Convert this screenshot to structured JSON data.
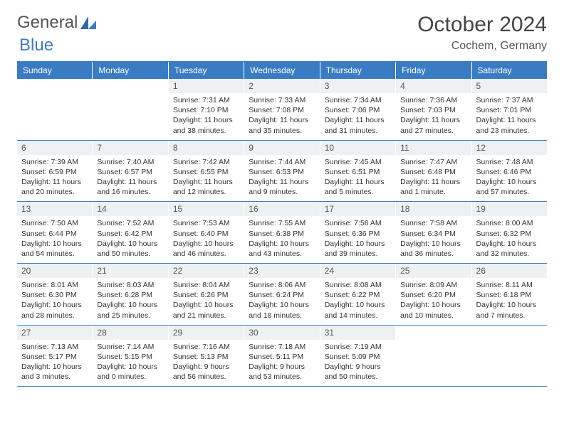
{
  "brand": {
    "word1": "General",
    "word2": "Blue"
  },
  "title": "October 2024",
  "location": "Cochem, Germany",
  "colors": {
    "brand_blue": "#3a7cc4",
    "text_dark": "#444444",
    "text_mid": "#555555",
    "daynum_bg": "#eef1f3",
    "page_bg": "#ffffff"
  },
  "typography": {
    "title_fontsize_pt": 22,
    "location_fontsize_pt": 12,
    "dow_fontsize_pt": 9,
    "cell_fontsize_pt": 8
  },
  "dow": [
    "Sunday",
    "Monday",
    "Tuesday",
    "Wednesday",
    "Thursday",
    "Friday",
    "Saturday"
  ],
  "weeks": [
    [
      {
        "n": "",
        "sr": "",
        "ss": "",
        "dl": "",
        "empty": true
      },
      {
        "n": "",
        "sr": "",
        "ss": "",
        "dl": "",
        "empty": true
      },
      {
        "n": "1",
        "sr": "Sunrise: 7:31 AM",
        "ss": "Sunset: 7:10 PM",
        "dl": "Daylight: 11 hours and 38 minutes."
      },
      {
        "n": "2",
        "sr": "Sunrise: 7:33 AM",
        "ss": "Sunset: 7:08 PM",
        "dl": "Daylight: 11 hours and 35 minutes."
      },
      {
        "n": "3",
        "sr": "Sunrise: 7:34 AM",
        "ss": "Sunset: 7:06 PM",
        "dl": "Daylight: 11 hours and 31 minutes."
      },
      {
        "n": "4",
        "sr": "Sunrise: 7:36 AM",
        "ss": "Sunset: 7:03 PM",
        "dl": "Daylight: 11 hours and 27 minutes."
      },
      {
        "n": "5",
        "sr": "Sunrise: 7:37 AM",
        "ss": "Sunset: 7:01 PM",
        "dl": "Daylight: 11 hours and 23 minutes."
      }
    ],
    [
      {
        "n": "6",
        "sr": "Sunrise: 7:39 AM",
        "ss": "Sunset: 6:59 PM",
        "dl": "Daylight: 11 hours and 20 minutes."
      },
      {
        "n": "7",
        "sr": "Sunrise: 7:40 AM",
        "ss": "Sunset: 6:57 PM",
        "dl": "Daylight: 11 hours and 16 minutes."
      },
      {
        "n": "8",
        "sr": "Sunrise: 7:42 AM",
        "ss": "Sunset: 6:55 PM",
        "dl": "Daylight: 11 hours and 12 minutes."
      },
      {
        "n": "9",
        "sr": "Sunrise: 7:44 AM",
        "ss": "Sunset: 6:53 PM",
        "dl": "Daylight: 11 hours and 9 minutes."
      },
      {
        "n": "10",
        "sr": "Sunrise: 7:45 AM",
        "ss": "Sunset: 6:51 PM",
        "dl": "Daylight: 11 hours and 5 minutes."
      },
      {
        "n": "11",
        "sr": "Sunrise: 7:47 AM",
        "ss": "Sunset: 6:48 PM",
        "dl": "Daylight: 11 hours and 1 minute."
      },
      {
        "n": "12",
        "sr": "Sunrise: 7:48 AM",
        "ss": "Sunset: 6:46 PM",
        "dl": "Daylight: 10 hours and 57 minutes."
      }
    ],
    [
      {
        "n": "13",
        "sr": "Sunrise: 7:50 AM",
        "ss": "Sunset: 6:44 PM",
        "dl": "Daylight: 10 hours and 54 minutes."
      },
      {
        "n": "14",
        "sr": "Sunrise: 7:52 AM",
        "ss": "Sunset: 6:42 PM",
        "dl": "Daylight: 10 hours and 50 minutes."
      },
      {
        "n": "15",
        "sr": "Sunrise: 7:53 AM",
        "ss": "Sunset: 6:40 PM",
        "dl": "Daylight: 10 hours and 46 minutes."
      },
      {
        "n": "16",
        "sr": "Sunrise: 7:55 AM",
        "ss": "Sunset: 6:38 PM",
        "dl": "Daylight: 10 hours and 43 minutes."
      },
      {
        "n": "17",
        "sr": "Sunrise: 7:56 AM",
        "ss": "Sunset: 6:36 PM",
        "dl": "Daylight: 10 hours and 39 minutes."
      },
      {
        "n": "18",
        "sr": "Sunrise: 7:58 AM",
        "ss": "Sunset: 6:34 PM",
        "dl": "Daylight: 10 hours and 36 minutes."
      },
      {
        "n": "19",
        "sr": "Sunrise: 8:00 AM",
        "ss": "Sunset: 6:32 PM",
        "dl": "Daylight: 10 hours and 32 minutes."
      }
    ],
    [
      {
        "n": "20",
        "sr": "Sunrise: 8:01 AM",
        "ss": "Sunset: 6:30 PM",
        "dl": "Daylight: 10 hours and 28 minutes."
      },
      {
        "n": "21",
        "sr": "Sunrise: 8:03 AM",
        "ss": "Sunset: 6:28 PM",
        "dl": "Daylight: 10 hours and 25 minutes."
      },
      {
        "n": "22",
        "sr": "Sunrise: 8:04 AM",
        "ss": "Sunset: 6:26 PM",
        "dl": "Daylight: 10 hours and 21 minutes."
      },
      {
        "n": "23",
        "sr": "Sunrise: 8:06 AM",
        "ss": "Sunset: 6:24 PM",
        "dl": "Daylight: 10 hours and 18 minutes."
      },
      {
        "n": "24",
        "sr": "Sunrise: 8:08 AM",
        "ss": "Sunset: 6:22 PM",
        "dl": "Daylight: 10 hours and 14 minutes."
      },
      {
        "n": "25",
        "sr": "Sunrise: 8:09 AM",
        "ss": "Sunset: 6:20 PM",
        "dl": "Daylight: 10 hours and 10 minutes."
      },
      {
        "n": "26",
        "sr": "Sunrise: 8:11 AM",
        "ss": "Sunset: 6:18 PM",
        "dl": "Daylight: 10 hours and 7 minutes."
      }
    ],
    [
      {
        "n": "27",
        "sr": "Sunrise: 7:13 AM",
        "ss": "Sunset: 5:17 PM",
        "dl": "Daylight: 10 hours and 3 minutes."
      },
      {
        "n": "28",
        "sr": "Sunrise: 7:14 AM",
        "ss": "Sunset: 5:15 PM",
        "dl": "Daylight: 10 hours and 0 minutes."
      },
      {
        "n": "29",
        "sr": "Sunrise: 7:16 AM",
        "ss": "Sunset: 5:13 PM",
        "dl": "Daylight: 9 hours and 56 minutes."
      },
      {
        "n": "30",
        "sr": "Sunrise: 7:18 AM",
        "ss": "Sunset: 5:11 PM",
        "dl": "Daylight: 9 hours and 53 minutes."
      },
      {
        "n": "31",
        "sr": "Sunrise: 7:19 AM",
        "ss": "Sunset: 5:09 PM",
        "dl": "Daylight: 9 hours and 50 minutes."
      },
      {
        "n": "",
        "sr": "",
        "ss": "",
        "dl": "",
        "empty": true
      },
      {
        "n": "",
        "sr": "",
        "ss": "",
        "dl": "",
        "empty": true
      }
    ]
  ]
}
